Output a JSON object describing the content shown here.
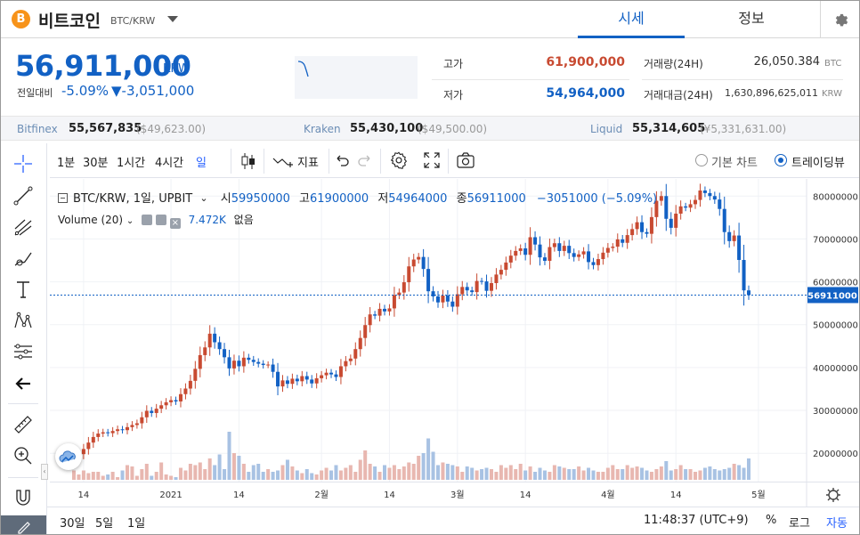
{
  "header": {
    "coin_symbol_glyph": "B",
    "coin_name": "비트코인",
    "pair": "BTC/KRW",
    "tab_price": "시세",
    "tab_info": "정보"
  },
  "ticker": {
    "price": "56,911,000",
    "price_unit": "KRW",
    "change_label": "전일대비",
    "change_rate": "-5.09%",
    "change_amount": "▼-3,051,000",
    "high_label": "고가",
    "high_value": "61,900,000",
    "low_label": "저가",
    "low_value": "54,964,000",
    "volume_label": "거래량(24H)",
    "volume_value": "26,050.384",
    "volume_unit": "BTC",
    "amount_label": "거래대금(24H)",
    "amount_value": "1,630,896,625,011",
    "amount_unit": "KRW"
  },
  "exchanges": [
    {
      "name": "Bitfinex",
      "price": "55,567,835",
      "sub": "($49,623.00)"
    },
    {
      "name": "Kraken",
      "price": "55,430,100",
      "sub": "($49,500.00)"
    },
    {
      "name": "Liquid",
      "price": "55,314,605",
      "sub": "(¥5,331,631.00)"
    }
  ],
  "toolbar": {
    "intervals": [
      "1분",
      "30분",
      "1시간",
      "4시간",
      "일"
    ],
    "indicators": "지표",
    "basic_chart": "기본 차트",
    "trading_view": "트레이딩뷰"
  },
  "legend": {
    "title": "BTC/KRW, 1일, UPBIT",
    "open_label": "시",
    "open": "59950000",
    "high_label": "고",
    "high": "61900000",
    "low_label": "저",
    "low": "54964000",
    "close_label": "종",
    "close": "56911000",
    "change": "−3051000 (−5.09%)",
    "volume_title": "Volume (20)",
    "volume_value": "7.472K",
    "volume_ma": "없음"
  },
  "footer": {
    "ranges": [
      "30일",
      "5일",
      "1일"
    ],
    "time": "11:48:37 (UTC+9)",
    "percent": "%",
    "log": "로그",
    "auto": "자동"
  },
  "colors": {
    "up": "#c84a31",
    "down": "#1261c4",
    "up_vol": "#e8b7b0",
    "down_vol": "#a8c2e3"
  },
  "chart_data": {
    "type": "candlestick",
    "title": "BTC/KRW, 1일, UPBIT",
    "y_ticks": [
      "80000000",
      "70000000",
      "60000000",
      "50000000",
      "40000000",
      "30000000",
      "20000000"
    ],
    "y_tick_values": [
      80000000,
      70000000,
      60000000,
      50000000,
      40000000,
      30000000,
      20000000
    ],
    "ylim": [
      13400000,
      84000000
    ],
    "x_ticks": [
      "14",
      "2021",
      "14",
      "2월",
      "14",
      "3월",
      "14",
      "4월",
      "14",
      "5월"
    ],
    "x_tick_index": [
      2,
      20,
      34,
      51,
      65,
      79,
      93,
      110,
      124,
      141
    ],
    "last_price_label": "56911000",
    "last_price": 56911000,
    "closes": [
      19200000,
      19800000,
      21000000,
      22500000,
      23800000,
      24600000,
      24900000,
      24700000,
      25200000,
      25600000,
      25400000,
      26100000,
      26600000,
      27000000,
      28400000,
      29900000,
      29400000,
      30400000,
      31200000,
      31900000,
      32400000,
      32100000,
      33800000,
      35100000,
      36900000,
      39700000,
      42900000,
      44700000,
      47900000,
      45900000,
      44300000,
      42400000,
      39800000,
      41600000,
      40300000,
      42300000,
      41800000,
      41300000,
      40900000,
      40600000,
      40700000,
      39000000,
      35600000,
      37000000,
      36200000,
      37400000,
      36800000,
      38000000,
      37200000,
      36300000,
      37500000,
      38200000,
      38800000,
      38400000,
      37800000,
      40300000,
      41500000,
      42100000,
      44300000,
      46900000,
      49900000,
      52400000,
      52100000,
      53700000,
      53100000,
      53800000,
      56900000,
      57500000,
      59900000,
      63600000,
      65200000,
      65800000,
      63000000,
      57800000,
      56600000,
      55200000,
      56800000,
      55400000,
      54200000,
      57100000,
      58800000,
      58000000,
      57600000,
      60200000,
      60100000,
      57900000,
      59700000,
      61700000,
      62800000,
      64500000,
      66100000,
      67200000,
      67800000,
      66300000,
      70400000,
      68700000,
      65700000,
      64900000,
      68100000,
      69000000,
      67200000,
      68400000,
      66700000,
      65800000,
      66400000,
      67100000,
      64600000,
      63900000,
      65300000,
      66800000,
      67900000,
      68200000,
      69900000,
      69100000,
      70900000,
      72300000,
      73900000,
      71600000,
      71200000,
      75100000,
      78900000,
      80000000,
      74700000,
      72600000,
      75900000,
      77600000,
      77300000,
      78100000,
      79100000,
      81300000,
      80700000,
      80000000,
      79200000,
      77000000,
      71600000,
      69500000,
      70800000,
      65100000,
      58000000,
      56911000
    ],
    "volumes_rel": [
      0.35,
      0.2,
      0.35,
      0.25,
      0.3,
      0.3,
      0.15,
      0.2,
      0.3,
      0.1,
      0.35,
      0.55,
      0.5,
      0.15,
      0.4,
      0.6,
      0.15,
      0.3,
      0.65,
      0.2,
      0.15,
      0.1,
      0.45,
      0.35,
      0.6,
      0.55,
      0.65,
      0.4,
      0.8,
      0.55,
      0.95,
      0.4,
      1.8,
      1.0,
      0.9,
      0.6,
      0.3,
      0.55,
      0.6,
      0.3,
      0.4,
      0.3,
      0.35,
      0.55,
      0.75,
      0.5,
      0.35,
      0.25,
      0.4,
      0.25,
      0.2,
      0.35,
      0.45,
      0.35,
      0.55,
      0.35,
      0.45,
      0.55,
      0.3,
      0.75,
      1.1,
      0.6,
      0.5,
      0.3,
      0.55,
      0.45,
      0.55,
      0.4,
      0.5,
      0.65,
      0.6,
      0.9,
      1.0,
      1.55,
      1.05,
      0.55,
      0.65,
      0.6,
      0.55,
      0.5,
      0.3,
      0.5,
      0.45,
      0.35,
      0.4,
      0.45,
      0.4,
      0.3,
      0.55,
      0.45,
      0.55,
      0.4,
      0.6,
      0.35,
      0.5,
      0.3,
      0.45,
      0.35,
      0.3,
      0.55,
      0.5,
      0.45,
      0.4,
      0.4,
      0.5,
      0.35,
      0.45,
      0.35,
      0.3,
      0.3,
      0.45,
      0.55,
      0.4,
      0.4,
      0.55,
      0.45,
      0.5,
      0.45,
      0.35,
      0.3,
      0.4,
      0.5,
      0.7,
      0.35,
      0.4,
      0.55,
      0.4,
      0.4,
      0.3,
      0.35,
      0.45,
      0.5,
      0.4,
      0.35,
      0.4,
      0.45,
      0.6,
      0.55,
      0.45,
      0.8,
      0.35
    ]
  }
}
